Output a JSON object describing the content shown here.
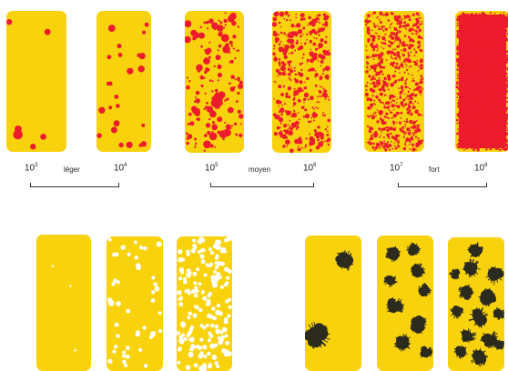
{
  "colors": {
    "card_yellow": "#f9d20e",
    "spot_red": "#ec1c2d",
    "spot_white": "#ffffff",
    "spot_dark": "#2b2b1e"
  },
  "top_row": {
    "groups": [
      {
        "left_exp": "10",
        "left_sup": "3",
        "word": "léger",
        "right_exp": "10",
        "right_sup": "4"
      },
      {
        "left_exp": "10",
        "left_sup": "5",
        "word": "moyen",
        "right_exp": "10",
        "right_sup": "6"
      },
      {
        "left_exp": "10",
        "left_sup": "7",
        "word": "fort",
        "right_exp": "10",
        "right_sup": "8"
      }
    ],
    "spot_counts": [
      6,
      24,
      160,
      380,
      700,
      1800
    ]
  },
  "bottom_left": {
    "spot_counts": [
      3,
      45,
      180
    ]
  },
  "bottom_right": {
    "spot_counts": [
      2,
      9,
      14
    ]
  }
}
